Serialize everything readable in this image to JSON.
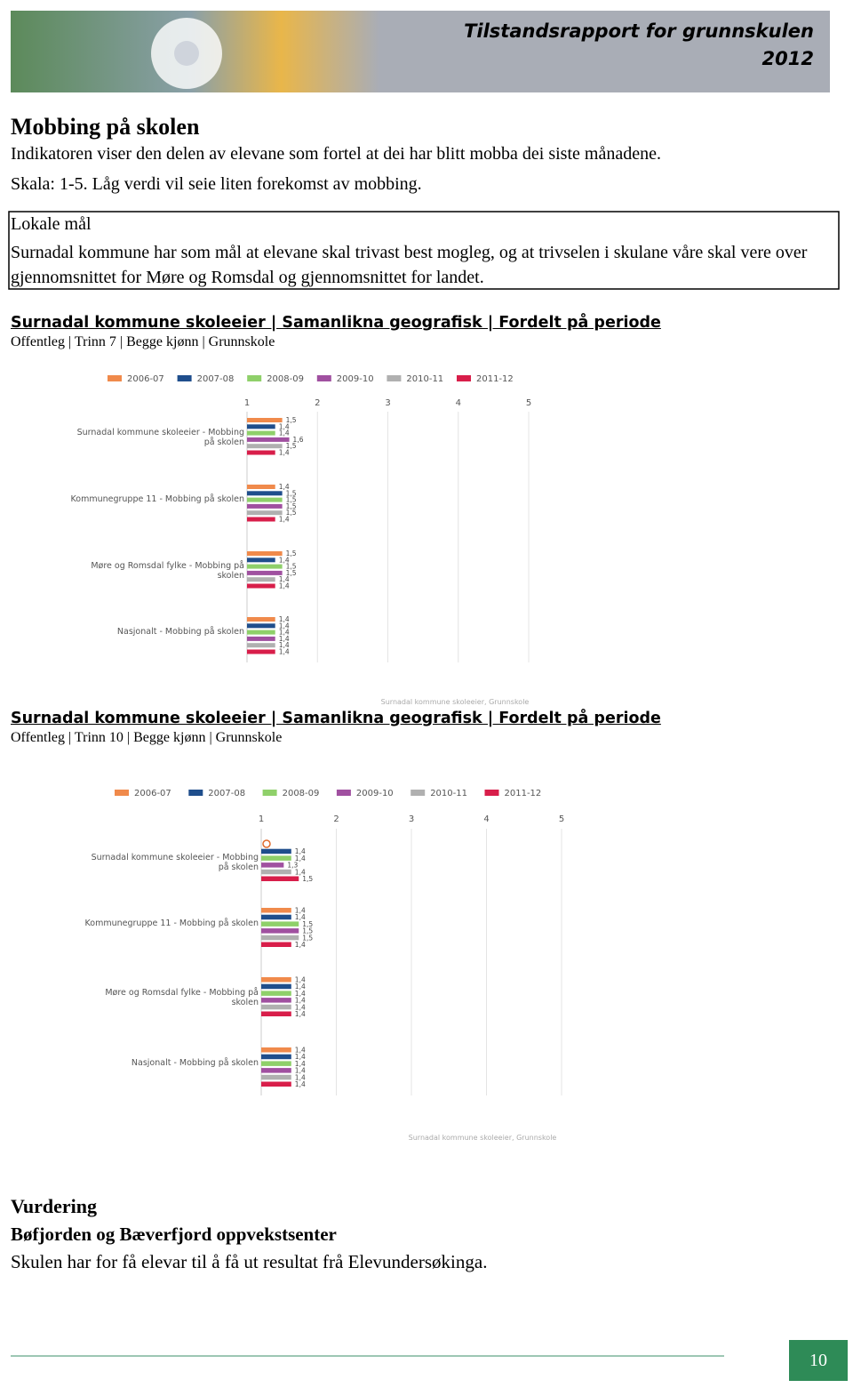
{
  "header": {
    "title": "Tilstandsrapport for grunnskulen",
    "year": "2012"
  },
  "section": {
    "title": "Mobbing på skolen",
    "lines": [
      "Indikatoren viser den delen av elevane som fortel at dei har blitt mobba dei siste månadene.",
      "Skala: 1-5. Låg verdi vil seie liten forekomst av mobbing."
    ]
  },
  "goal_box": {
    "title": "Lokale mål",
    "text": "Surnadal kommune har som mål at elevane skal trivast best mogleg, og at trivselen i skulane våre skal vere over gjennomsnittet for Møre og Romsdal og gjennomsnittet for landet."
  },
  "chart_data": [
    {
      "type": "bar",
      "orientation": "horizontal",
      "title": "Surnadal kommune skoleeier | Samanlikna geografisk | Fordelt på periode",
      "subtitle": "Offentleg | Trinn 7 | Begge kjønn | Grunnskole",
      "source": "Surnadal kommune skoleeier, Grunnskole",
      "categories": [
        "Surnadal kommune skoleeier - Mobbing på skolen",
        "Kommunegruppe 11 - Mobbing på skolen",
        "Møre og Romsdal fylke - Mobbing på skolen",
        "Nasjonalt - Mobbing på skolen"
      ],
      "series": [
        {
          "name": "2006-07",
          "color": "#f08a4b",
          "values": [
            1.5,
            1.4,
            1.5,
            1.4
          ],
          "value_labels": [
            "1,5",
            "1,4",
            "1,5",
            "1,4"
          ]
        },
        {
          "name": "2007-08",
          "color": "#1f4e8c",
          "values": [
            1.4,
            1.5,
            1.4,
            1.4
          ],
          "value_labels": [
            "1,4",
            "1,5",
            "1,4",
            "1,4"
          ]
        },
        {
          "name": "2008-09",
          "color": "#8fd06a",
          "values": [
            1.4,
            1.5,
            1.5,
            1.4
          ],
          "value_labels": [
            "1,4",
            "1,5",
            "1,5",
            "1,4"
          ]
        },
        {
          "name": "2009-10",
          "color": "#a050a0",
          "values": [
            1.6,
            1.5,
            1.5,
            1.4
          ],
          "value_labels": [
            "1,6",
            "1,5",
            "1,5",
            "1,4"
          ]
        },
        {
          "name": "2010-11",
          "color": "#b0b0b0",
          "values": [
            1.5,
            1.5,
            1.4,
            1.4
          ],
          "value_labels": [
            "1,5",
            "1,5",
            "1,4",
            "1,4"
          ]
        },
        {
          "name": "2011-12",
          "color": "#d81e4a",
          "values": [
            1.4,
            1.4,
            1.4,
            1.4
          ],
          "value_labels": [
            "1,4",
            "1,4",
            "1,4",
            "1,4"
          ]
        }
      ],
      "xlim": [
        1,
        5
      ],
      "xticks": [
        1,
        2,
        3,
        4,
        5
      ],
      "grid": true
    },
    {
      "type": "bar",
      "orientation": "horizontal",
      "title": "Surnadal kommune skoleeier | Samanlikna geografisk | Fordelt på periode",
      "subtitle": "Offentleg | Trinn 10 | Begge kjønn | Grunnskole",
      "source": "Surnadal kommune skoleeier, Grunnskole",
      "categories": [
        "Surnadal kommune skoleeier - Mobbing på skolen",
        "Kommunegruppe 11 - Mobbing på skolen",
        "Møre og Romsdal fylke - Mobbing på skolen",
        "Nasjonalt - Mobbing på skolen"
      ],
      "series": [
        {
          "name": "2006-07",
          "color": "#f08a4b",
          "values": [
            null,
            1.4,
            1.4,
            1.4
          ],
          "value_labels": [
            null,
            "1,4",
            "1,4",
            "1,4"
          ]
        },
        {
          "name": "2007-08",
          "color": "#1f4e8c",
          "values": [
            1.4,
            1.4,
            1.4,
            1.4
          ],
          "value_labels": [
            "1,4",
            "1,4",
            "1,4",
            "1,4"
          ]
        },
        {
          "name": "2008-09",
          "color": "#8fd06a",
          "values": [
            1.4,
            1.5,
            1.4,
            1.4
          ],
          "value_labels": [
            "1,4",
            "1,5",
            "1,4",
            "1,4"
          ]
        },
        {
          "name": "2009-10",
          "color": "#a050a0",
          "values": [
            1.3,
            1.5,
            1.4,
            1.4
          ],
          "value_labels": [
            "1,3",
            "1,5",
            "1,4",
            "1,4"
          ]
        },
        {
          "name": "2010-11",
          "color": "#b0b0b0",
          "values": [
            1.4,
            1.5,
            1.4,
            1.4
          ],
          "value_labels": [
            "1,4",
            "1,5",
            "1,4",
            "1,4"
          ]
        },
        {
          "name": "2011-12",
          "color": "#d81e4a",
          "values": [
            1.5,
            1.4,
            1.4,
            1.4
          ],
          "value_labels": [
            "1,5",
            "1,4",
            "1,4",
            "1,4"
          ]
        }
      ],
      "xlim": [
        1,
        5
      ],
      "xticks": [
        1,
        2,
        3,
        4,
        5
      ],
      "grid": true
    }
  ],
  "assessment": {
    "title": "Vurdering",
    "school": "Bøfjorden og Bæverfjord oppvekstsenter",
    "text": "Skulen har for få elevar til å få ut resultat frå Elevundersøkinga."
  },
  "footer": {
    "page_number": "10"
  }
}
